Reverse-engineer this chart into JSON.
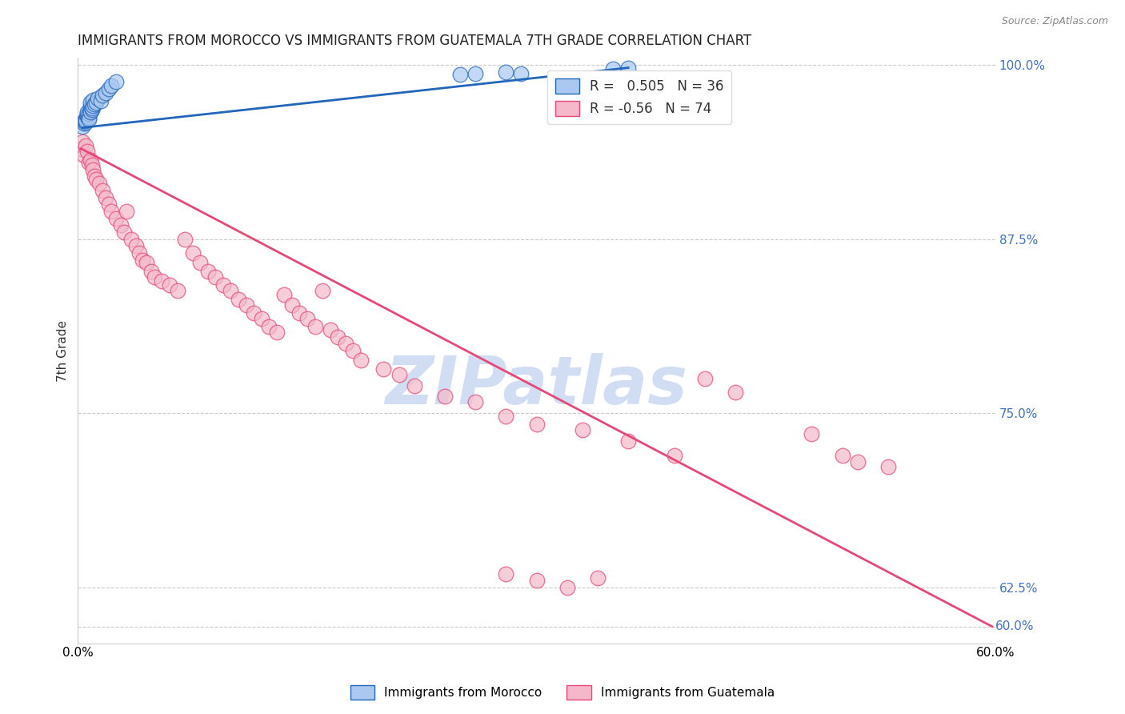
{
  "title": "IMMIGRANTS FROM MOROCCO VS IMMIGRANTS FROM GUATEMALA 7TH GRADE CORRELATION CHART",
  "source": "Source: ZipAtlas.com",
  "ylabel": "7th Grade",
  "morocco_R": 0.505,
  "morocco_N": 36,
  "guatemala_R": -0.56,
  "guatemala_N": 74,
  "morocco_color": "#aac8f0",
  "guatemala_color": "#f5b8cb",
  "morocco_line_color": "#2266bb",
  "guatemala_line_color": "#e84878",
  "watermark": "ZIPatlas",
  "watermark_color": "#c8d8f0",
  "xlim": [
    0.0,
    0.6
  ],
  "ylim": [
    0.585,
    1.005
  ],
  "morocco_scatter_x": [
    0.003,
    0.004,
    0.004,
    0.005,
    0.005,
    0.005,
    0.006,
    0.006,
    0.006,
    0.006,
    0.007,
    0.007,
    0.007,
    0.008,
    0.008,
    0.008,
    0.008,
    0.009,
    0.009,
    0.01,
    0.01,
    0.011,
    0.012,
    0.013,
    0.015,
    0.016,
    0.018,
    0.02,
    0.022,
    0.025,
    0.25,
    0.26,
    0.28,
    0.29,
    0.35,
    0.36
  ],
  "morocco_scatter_y": [
    0.956,
    0.958,
    0.96,
    0.959,
    0.961,
    0.96,
    0.963,
    0.965,
    0.964,
    0.966,
    0.962,
    0.965,
    0.961,
    0.967,
    0.97,
    0.966,
    0.973,
    0.968,
    0.969,
    0.971,
    0.975,
    0.972,
    0.973,
    0.976,
    0.974,
    0.978,
    0.98,
    0.983,
    0.985,
    0.988,
    0.993,
    0.994,
    0.995,
    0.994,
    0.997,
    0.998
  ],
  "guatemala_scatter_x": [
    0.002,
    0.003,
    0.004,
    0.005,
    0.006,
    0.007,
    0.008,
    0.009,
    0.01,
    0.011,
    0.012,
    0.014,
    0.016,
    0.018,
    0.02,
    0.022,
    0.025,
    0.028,
    0.03,
    0.032,
    0.035,
    0.038,
    0.04,
    0.042,
    0.045,
    0.048,
    0.05,
    0.055,
    0.06,
    0.065,
    0.07,
    0.075,
    0.08,
    0.085,
    0.09,
    0.095,
    0.1,
    0.105,
    0.11,
    0.115,
    0.12,
    0.125,
    0.13,
    0.135,
    0.14,
    0.145,
    0.15,
    0.155,
    0.16,
    0.165,
    0.17,
    0.175,
    0.18,
    0.185,
    0.2,
    0.21,
    0.22,
    0.24,
    0.26,
    0.28,
    0.3,
    0.33,
    0.36,
    0.39,
    0.41,
    0.43,
    0.48,
    0.5,
    0.51,
    0.53,
    0.34,
    0.32,
    0.28,
    0.3
  ],
  "guatemala_scatter_y": [
    0.94,
    0.945,
    0.935,
    0.942,
    0.938,
    0.93,
    0.932,
    0.928,
    0.925,
    0.92,
    0.918,
    0.915,
    0.91,
    0.905,
    0.9,
    0.895,
    0.89,
    0.885,
    0.88,
    0.895,
    0.875,
    0.87,
    0.865,
    0.86,
    0.858,
    0.852,
    0.848,
    0.845,
    0.842,
    0.838,
    0.875,
    0.865,
    0.858,
    0.852,
    0.848,
    0.842,
    0.838,
    0.832,
    0.828,
    0.822,
    0.818,
    0.812,
    0.808,
    0.835,
    0.828,
    0.822,
    0.818,
    0.812,
    0.838,
    0.81,
    0.805,
    0.8,
    0.795,
    0.788,
    0.782,
    0.778,
    0.77,
    0.762,
    0.758,
    0.748,
    0.742,
    0.738,
    0.73,
    0.72,
    0.775,
    0.765,
    0.735,
    0.72,
    0.715,
    0.712,
    0.632,
    0.625,
    0.635,
    0.63
  ],
  "guatemala_line_x": [
    0.002,
    0.598
  ],
  "guatemala_line_y": [
    0.94,
    0.597
  ],
  "morocco_line_x": [
    0.003,
    0.36
  ],
  "morocco_line_y": [
    0.955,
    0.998
  ]
}
